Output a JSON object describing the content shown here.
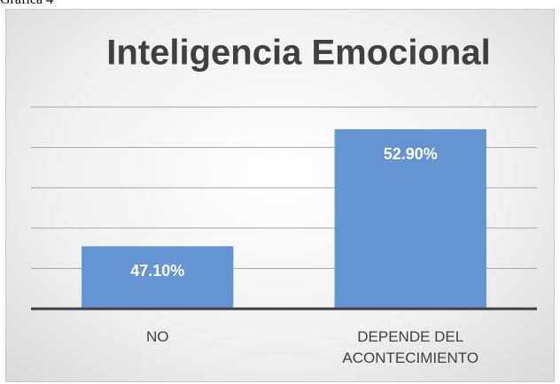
{
  "caption": "Gráfica 4",
  "chart_data": {
    "type": "bar",
    "title": "Inteligencia Emocional",
    "categories": [
      "NO",
      "DEPENDE DEL ACONTECIMIENTO"
    ],
    "values": [
      47.1,
      52.9
    ],
    "value_labels": [
      "47.10%",
      "52.90%"
    ],
    "color": "#6494d2",
    "ylim": [
      44,
      54
    ],
    "yticks": [
      44,
      46,
      48,
      50,
      52,
      54
    ],
    "grid": true
  }
}
